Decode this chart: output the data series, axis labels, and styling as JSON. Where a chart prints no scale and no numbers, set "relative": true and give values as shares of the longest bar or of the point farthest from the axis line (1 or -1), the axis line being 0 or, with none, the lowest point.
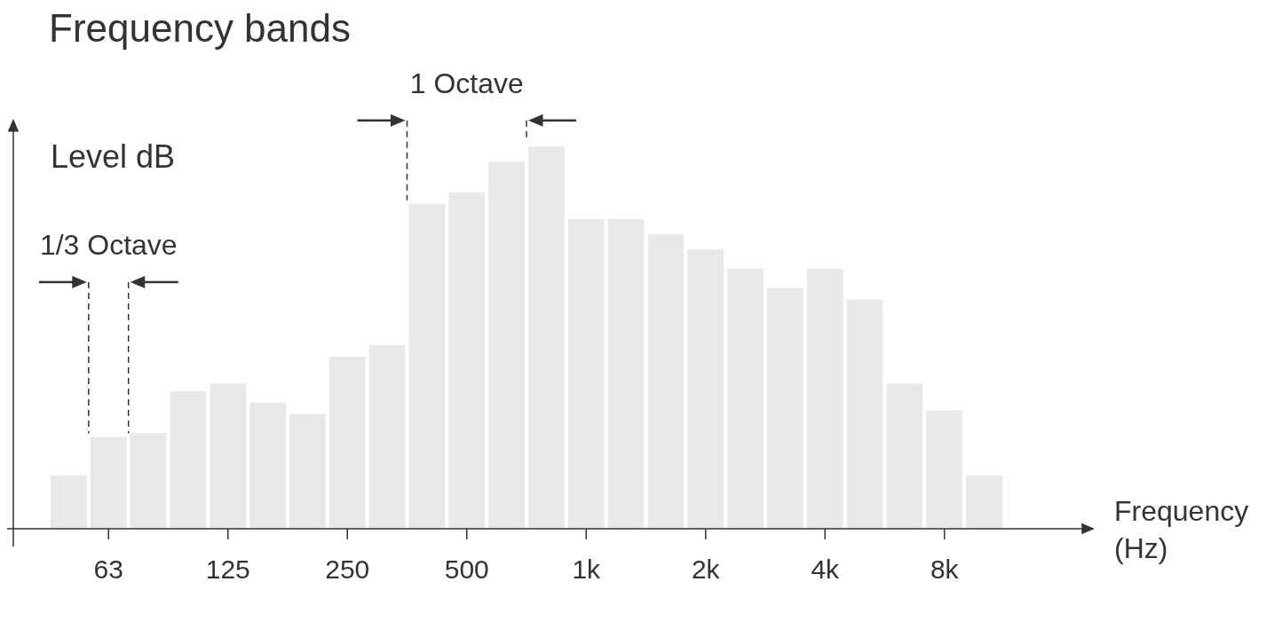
{
  "chart_data": {
    "type": "bar",
    "title": "Frequency bands",
    "xlabel": "Frequency (Hz)",
    "ylabel": "Level dB",
    "relative": true,
    "color": "#e8e8e8",
    "legend": false,
    "grid": false,
    "categories": [
      null,
      "63",
      null,
      null,
      "125",
      null,
      null,
      "250",
      null,
      null,
      "500",
      null,
      null,
      "1k",
      null,
      null,
      "2k",
      null,
      null,
      "4k",
      null,
      null,
      "8k",
      null
    ],
    "values": [
      0.14,
      0.24,
      0.25,
      0.36,
      0.38,
      0.33,
      0.3,
      0.45,
      0.48,
      0.85,
      0.88,
      0.96,
      1,
      0.81,
      0.81,
      0.77,
      0.73,
      0.68,
      0.63,
      0.68,
      0.6,
      0.38,
      0.31,
      0.14
    ],
    "annotations": [
      "1/3 Octave",
      "1 Octave"
    ]
  }
}
